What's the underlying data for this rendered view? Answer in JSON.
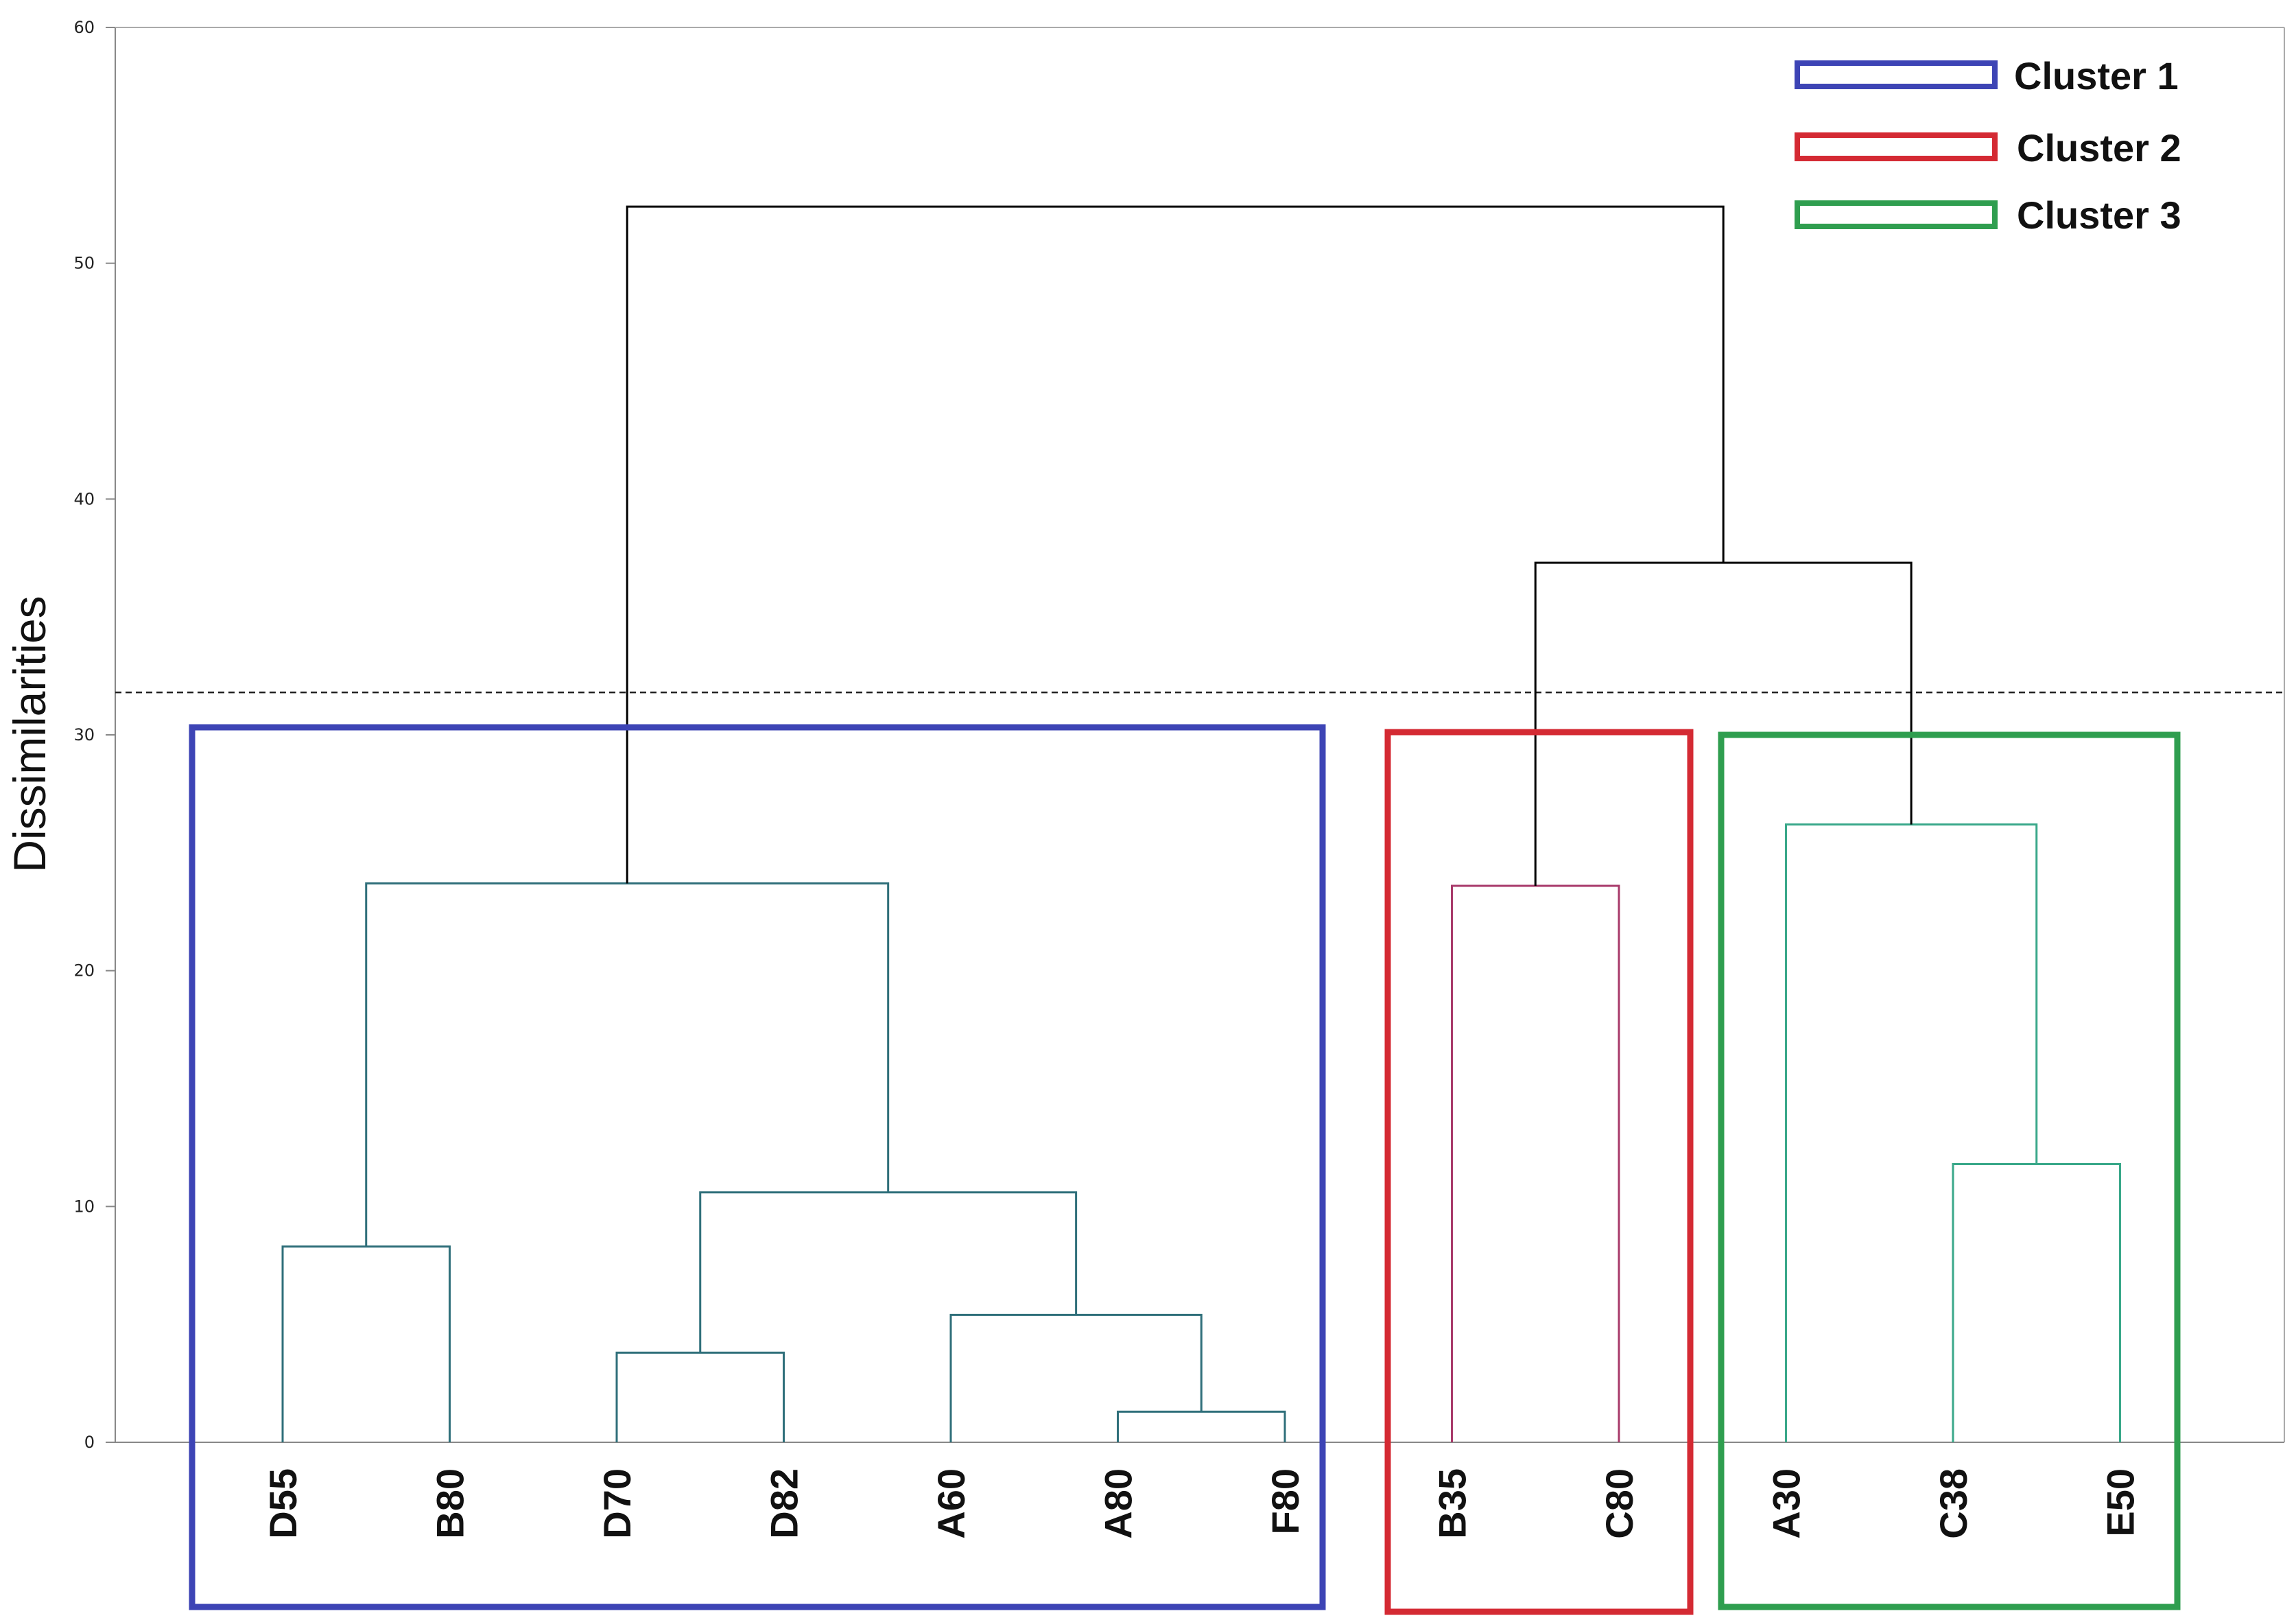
{
  "chart_data": {
    "type": "dendrogram",
    "ylabel": "Dissimilarities",
    "ylim": [
      0,
      60
    ],
    "yticks": [
      0,
      10,
      20,
      30,
      40,
      50,
      60
    ],
    "cut_threshold": 31.8,
    "leaves": [
      "D55",
      "B80",
      "D70",
      "D82",
      "A60",
      "A80",
      "F80",
      "B35",
      "C80",
      "A30",
      "C38",
      "E50"
    ],
    "merges": [
      {
        "id": "m1",
        "left": "A80",
        "right": "F80",
        "height": 1.3,
        "color": "#2f6f7a"
      },
      {
        "id": "m2",
        "left": "D70",
        "right": "D82",
        "height": 3.8,
        "color": "#2f6f7a"
      },
      {
        "id": "m3",
        "left": "A60",
        "right": "m1",
        "height": 5.4,
        "color": "#2f6f7a"
      },
      {
        "id": "m4",
        "left": "D55",
        "right": "B80",
        "height": 8.3,
        "color": "#2f6f7a"
      },
      {
        "id": "m5",
        "left": "m2",
        "right": "m3",
        "height": 10.6,
        "color": "#2f6f7a"
      },
      {
        "id": "m6",
        "left": "C38",
        "right": "E50",
        "height": 11.8,
        "color": "#3aa88a"
      },
      {
        "id": "m7",
        "left": "B35",
        "right": "C80",
        "height": 23.6,
        "color": "#a83a6a"
      },
      {
        "id": "m8",
        "left": "m4",
        "right": "m5",
        "height": 23.7,
        "color": "#2f6f7a"
      },
      {
        "id": "m9",
        "left": "A30",
        "right": "m6",
        "height": 26.2,
        "color": "#3aa88a"
      },
      {
        "id": "m10",
        "left": "m7",
        "right": "m9",
        "height": 37.3,
        "color": "#000000"
      },
      {
        "id": "m11",
        "left": "m8",
        "right": "m10",
        "height": 52.4,
        "color": "#000000"
      }
    ],
    "clusters": [
      {
        "label": "Cluster 1",
        "color": "#3d44b5",
        "leaves": [
          "D55",
          "B80",
          "D70",
          "D82",
          "A60",
          "A80",
          "F80"
        ]
      },
      {
        "label": "Cluster 2",
        "color": "#d42a33",
        "leaves": [
          "B35",
          "C80"
        ]
      },
      {
        "label": "Cluster 3",
        "color": "#2f9e4f",
        "leaves": [
          "A30",
          "C38",
          "E50"
        ]
      }
    ],
    "legend_position": "top-right"
  }
}
